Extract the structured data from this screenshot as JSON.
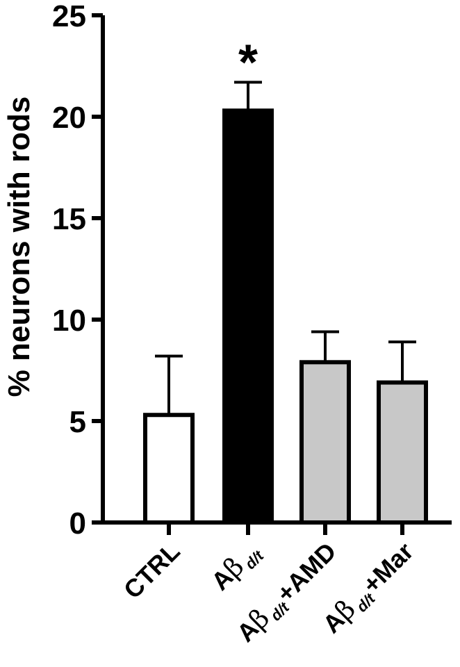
{
  "chart_data": {
    "type": "bar",
    "ylabel": "% neurons with rods",
    "ylim": [
      0,
      25
    ],
    "yticks": [
      0,
      5,
      10,
      15,
      20,
      25
    ],
    "grid": false,
    "categories": [
      {
        "pre": "CTRL",
        "beta": "",
        "sub": "",
        "post": ""
      },
      {
        "pre": "A",
        "beta": "β",
        "sub": "d/t",
        "post": ""
      },
      {
        "pre": "A",
        "beta": "β",
        "sub": "d/t",
        "post": "+AMD"
      },
      {
        "pre": "A",
        "beta": "β",
        "sub": "d/t",
        "post": "+Mar"
      }
    ],
    "values": [
      5.3,
      20.3,
      7.9,
      6.9
    ],
    "errors": [
      2.9,
      1.4,
      1.5,
      2.0
    ],
    "bar_colors": [
      "#ffffff",
      "#000000",
      "#c8c8c8",
      "#c8c8c8"
    ],
    "annotations": [
      {
        "category_index": 1,
        "text": "*"
      }
    ]
  }
}
